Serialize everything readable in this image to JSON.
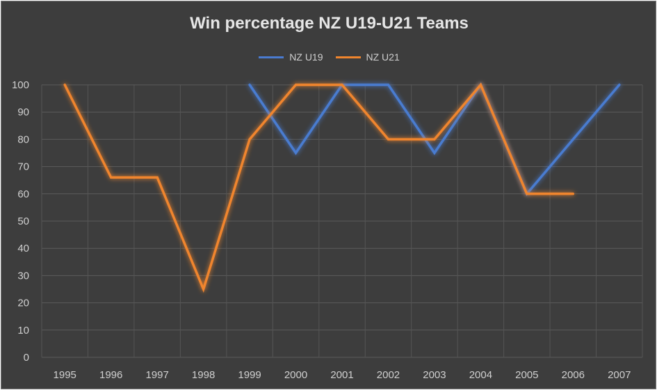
{
  "chart_data": {
    "type": "line",
    "title": "Win percentage NZ U19-U21 Teams",
    "xlabel": "",
    "ylabel": "",
    "categories": [
      "1995",
      "1996",
      "1997",
      "1998",
      "1999",
      "2000",
      "2001",
      "2002",
      "2003",
      "2004",
      "2005",
      "2006",
      "2007"
    ],
    "ylim": [
      0,
      100
    ],
    "yticks": [
      0,
      10,
      20,
      30,
      40,
      50,
      60,
      70,
      80,
      90,
      100
    ],
    "grid": true,
    "legend_position": "top",
    "series": [
      {
        "name": "NZ U19",
        "color": "#4a7bd0",
        "values": [
          null,
          null,
          null,
          null,
          100,
          75,
          100,
          100,
          75,
          100,
          60,
          80,
          100
        ]
      },
      {
        "name": "NZ U21",
        "color": "#f0852d",
        "values": [
          100,
          66,
          66,
          25,
          80,
          100,
          100,
          80,
          80,
          100,
          60,
          60,
          null
        ]
      }
    ]
  }
}
